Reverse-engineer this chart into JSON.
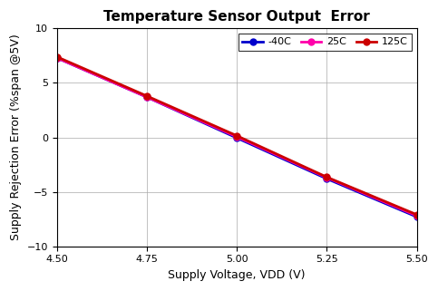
{
  "title": "Temperature Sensor Output  Error",
  "xlabel": "Supply Voltage, VDD (V)",
  "ylabel": "Supply Rejection Error (%span @5V)",
  "xlim": [
    4.5,
    5.5
  ],
  "ylim": [
    -10,
    10
  ],
  "xticks": [
    4.5,
    4.75,
    5.0,
    5.25,
    5.5
  ],
  "yticks": [
    -10,
    -5,
    0,
    5,
    10
  ],
  "series": [
    {
      "label": "-40C",
      "color": "#0000CC",
      "marker": "o",
      "marker_color": "#0000CC",
      "x": [
        4.5,
        4.75,
        5.0,
        5.25,
        5.5
      ],
      "y": [
        7.3,
        3.7,
        -0.05,
        -3.8,
        -7.3
      ]
    },
    {
      "label": "25C",
      "color": "#FF00AA",
      "marker": "o",
      "marker_color": "#FF00AA",
      "x": [
        4.5,
        4.75,
        5.0,
        5.25,
        5.5
      ],
      "y": [
        7.3,
        3.7,
        0.05,
        -3.7,
        -7.2
      ]
    },
    {
      "label": "125C",
      "color": "#CC0000",
      "marker": "o",
      "marker_color": "#CC0000",
      "x": [
        4.5,
        4.75,
        5.0,
        5.25,
        5.5
      ],
      "y": [
        7.4,
        3.8,
        0.15,
        -3.65,
        -7.1
      ]
    }
  ],
  "grid": true,
  "background_color": "#FFFFFF",
  "plot_bg_color": "#FFFFFF",
  "title_fontsize": 11,
  "label_fontsize": 9,
  "tick_fontsize": 8,
  "legend_fontsize": 8,
  "linewidth": 2.0,
  "markersize": 5
}
